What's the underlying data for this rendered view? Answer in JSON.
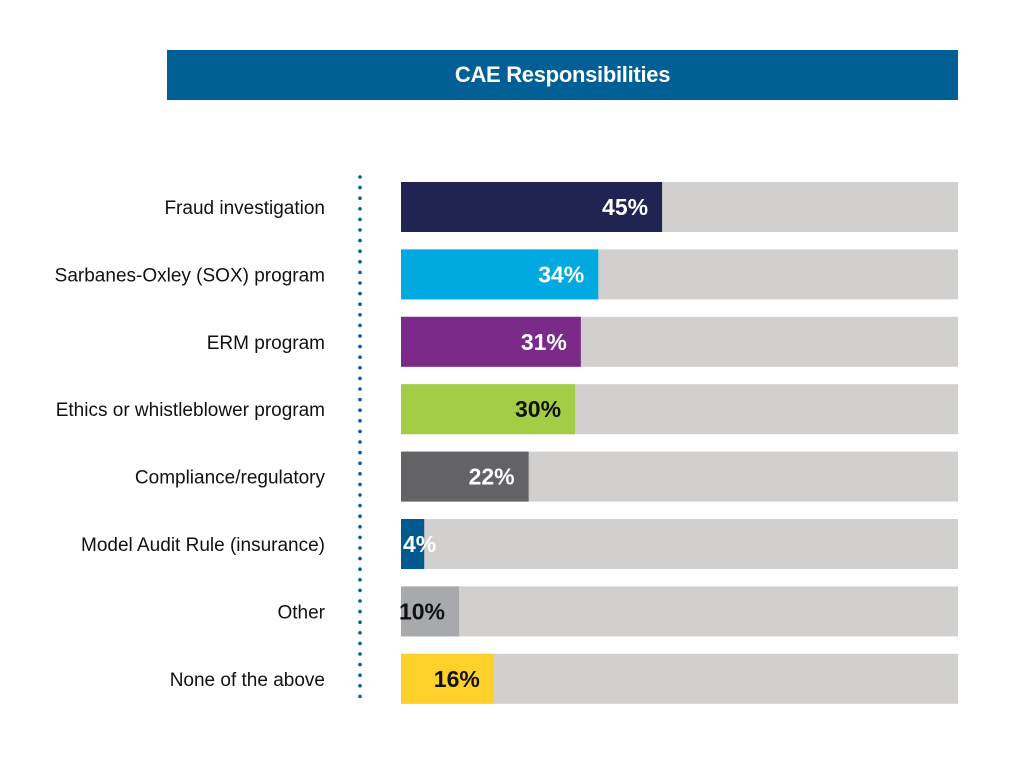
{
  "chart_data": {
    "type": "bar",
    "orientation": "horizontal",
    "title": "CAE Responsibilities",
    "xlabel": "",
    "ylabel": "",
    "unit": "%",
    "xlim": [
      0,
      96
    ],
    "grid": false,
    "categories": [
      "Fraud investigation",
      "Sarbanes-Oxley (SOX) program",
      "ERM program",
      "Ethics or whistleblower program",
      "Compliance/regulatory",
      "Model Audit Rule (insurance)",
      "Other",
      "None of the above"
    ],
    "values": [
      45,
      34,
      31,
      30,
      22,
      4,
      10,
      16
    ],
    "value_labels": [
      "45%",
      "34%",
      "31%",
      "30%",
      "22%",
      "4%",
      "10%",
      "16%"
    ],
    "bar_colors": [
      "#1f2453",
      "#00a9e0",
      "#7b2a8a",
      "#a4cd46",
      "#636366",
      "#005a8f",
      "#a7a9ac",
      "#fdd12a"
    ],
    "label_colors": [
      "#ffffff",
      "#ffffff",
      "#ffffff",
      "#111111",
      "#ffffff",
      "#ffffff",
      "#111111",
      "#111111"
    ],
    "track_color": "#d1d0cf",
    "title_bar_color": "#006095",
    "axis_line_color": "#006095"
  }
}
